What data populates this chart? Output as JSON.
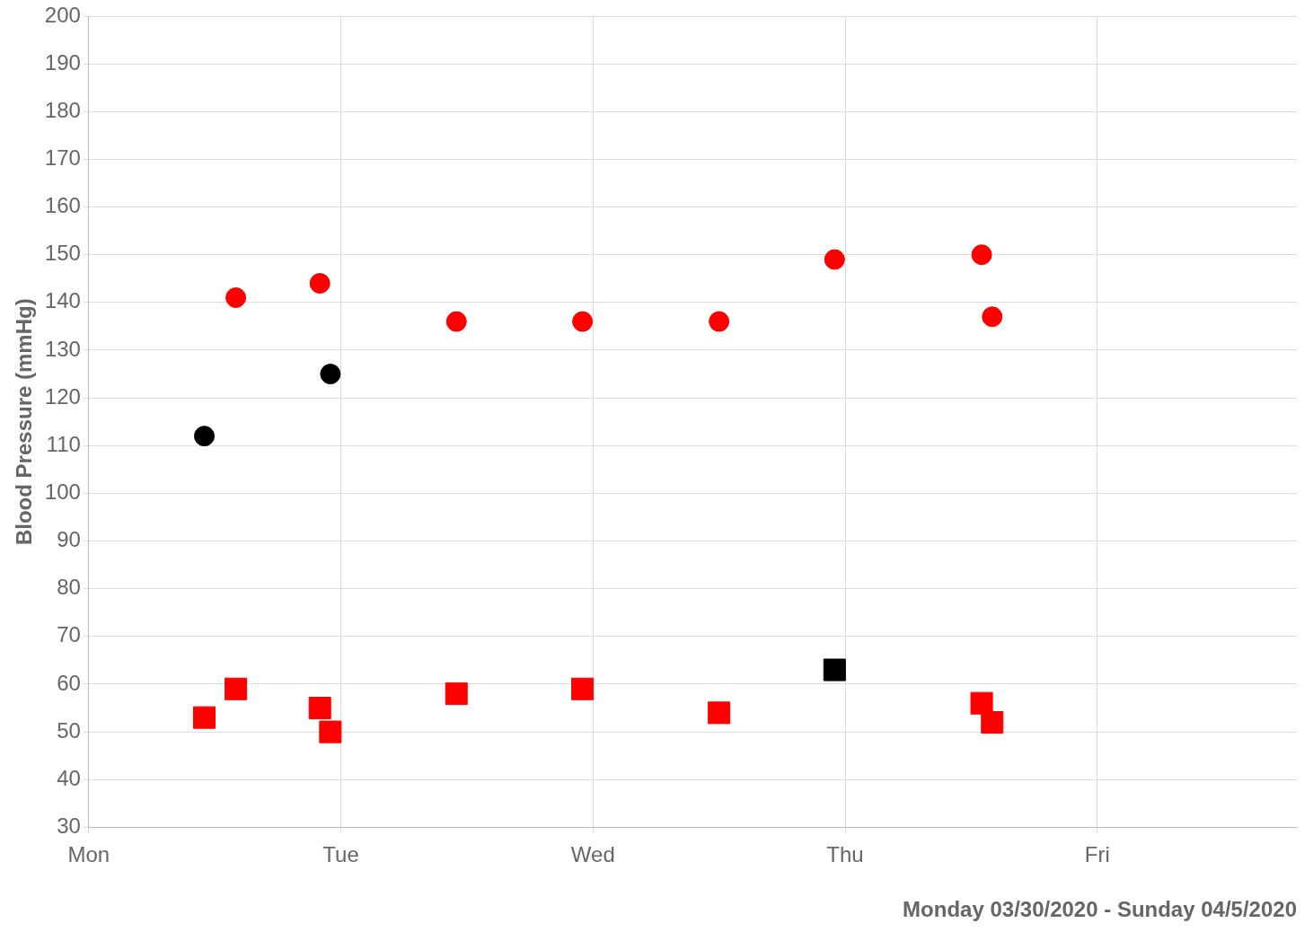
{
  "chart_data": {
    "type": "scatter",
    "xlabel": "Monday 03/30/2020 - Sunday 04/5/2020",
    "ylabel": "Blood Pressure (mmHg)",
    "categories": [
      "Mon",
      null,
      null,
      null,
      null,
      null,
      null,
      null,
      null,
      null,
      null,
      null,
      null,
      null,
      null,
      null,
      null,
      null,
      null,
      null,
      null,
      null,
      null,
      null,
      "Tue",
      null,
      null,
      null,
      null,
      null,
      null,
      null,
      null,
      null,
      null,
      null,
      null,
      null,
      null,
      null,
      null,
      null,
      null,
      null,
      null,
      null,
      null,
      null,
      "Wed",
      null,
      null,
      null,
      null,
      null,
      null,
      null,
      null,
      null,
      null,
      null,
      null,
      null,
      null,
      null,
      null,
      null,
      null,
      null,
      null,
      null,
      null,
      null,
      "Thu",
      null,
      null,
      null,
      null,
      null,
      null,
      null,
      null,
      null,
      null,
      null,
      null,
      null,
      null,
      null,
      null,
      null,
      null,
      null,
      null,
      null,
      null,
      null,
      "Fri",
      null,
      null,
      null,
      null,
      null,
      null,
      null,
      null,
      null,
      null,
      null,
      null,
      null,
      null,
      null,
      null,
      null,
      null,
      null
    ],
    "series": [
      {
        "marker": "circle",
        "color": "#ff0000",
        "values": [
          null,
          null,
          null,
          null,
          null,
          null,
          null,
          null,
          null,
          null,
          null,
          null,
          null,
          null,
          141,
          null,
          null,
          null,
          null,
          null,
          null,
          null,
          144,
          null,
          null,
          null,
          null,
          null,
          null,
          null,
          null,
          null,
          null,
          null,
          null,
          136,
          null,
          null,
          null,
          null,
          null,
          null,
          null,
          null,
          null,
          null,
          null,
          136,
          null,
          null,
          null,
          null,
          null,
          null,
          null,
          null,
          null,
          null,
          null,
          null,
          136,
          null,
          null,
          null,
          null,
          null,
          null,
          null,
          null,
          null,
          null,
          149,
          null,
          null,
          null,
          null,
          null,
          null,
          null,
          null,
          null,
          null,
          null,
          null,
          null,
          150,
          137,
          null,
          null,
          null,
          null,
          null,
          null,
          null,
          null,
          null,
          null,
          null,
          null,
          null,
          null,
          null,
          null,
          null,
          null,
          null,
          null,
          null,
          null,
          null,
          null,
          null,
          null,
          null,
          null,
          null
        ]
      },
      {
        "marker": "circle",
        "color": "#000000",
        "values": [
          null,
          null,
          null,
          null,
          null,
          null,
          null,
          null,
          null,
          null,
          null,
          112,
          null,
          null,
          null,
          null,
          null,
          null,
          null,
          null,
          null,
          null,
          null,
          125,
          null,
          null,
          null,
          null,
          null,
          null,
          null,
          null,
          null,
          null,
          null,
          null,
          null,
          null,
          null,
          null,
          null,
          null,
          null,
          null,
          null,
          null,
          null,
          null,
          null,
          null,
          null,
          null,
          null,
          null,
          null,
          null,
          null,
          null,
          null,
          null,
          null,
          null,
          null,
          null,
          null,
          null,
          null,
          null,
          null,
          null,
          null,
          null,
          null,
          null,
          null,
          null,
          null,
          null,
          null,
          null,
          null,
          null,
          null,
          null,
          null,
          null,
          null,
          null,
          null,
          null,
          null,
          null,
          null,
          null,
          null,
          null,
          null,
          null,
          null,
          null,
          null,
          null,
          null,
          null,
          null,
          null,
          null,
          null,
          null,
          null,
          null,
          null,
          null,
          null,
          null,
          null
        ]
      },
      {
        "marker": "square",
        "color": "#ff0000",
        "values": [
          null,
          null,
          null,
          null,
          null,
          null,
          null,
          null,
          null,
          null,
          null,
          53,
          null,
          null,
          59,
          null,
          null,
          null,
          null,
          null,
          null,
          null,
          55,
          50,
          null,
          null,
          null,
          null,
          null,
          null,
          null,
          null,
          null,
          null,
          null,
          58,
          null,
          null,
          null,
          null,
          null,
          null,
          null,
          null,
          null,
          null,
          null,
          59,
          null,
          null,
          null,
          null,
          null,
          null,
          null,
          null,
          null,
          null,
          null,
          null,
          54,
          null,
          null,
          null,
          null,
          null,
          null,
          null,
          null,
          null,
          null,
          null,
          null,
          null,
          null,
          null,
          null,
          null,
          null,
          null,
          null,
          null,
          null,
          null,
          null,
          56,
          52,
          null,
          null,
          null,
          null,
          null,
          null,
          null,
          null,
          null,
          null,
          null,
          null,
          null,
          null,
          null,
          null,
          null,
          null,
          null,
          null,
          null,
          null,
          null,
          null,
          null,
          null,
          null,
          null,
          null
        ]
      },
      {
        "marker": "square",
        "color": "#000000",
        "values": [
          null,
          null,
          null,
          null,
          null,
          null,
          null,
          null,
          null,
          null,
          null,
          null,
          null,
          null,
          null,
          null,
          null,
          null,
          null,
          null,
          null,
          null,
          null,
          null,
          null,
          null,
          null,
          null,
          null,
          null,
          null,
          null,
          null,
          null,
          null,
          null,
          null,
          null,
          null,
          null,
          null,
          null,
          null,
          null,
          null,
          null,
          null,
          null,
          null,
          null,
          null,
          null,
          null,
          null,
          null,
          null,
          null,
          null,
          null,
          null,
          null,
          null,
          null,
          null,
          null,
          null,
          null,
          null,
          null,
          null,
          null,
          63,
          null,
          null,
          null,
          null,
          null,
          null,
          null,
          null,
          null,
          null,
          null,
          null,
          null,
          null,
          null,
          null,
          null,
          null,
          null,
          null,
          null,
          null,
          null,
          null,
          null,
          null,
          null,
          null,
          null,
          null,
          null,
          null,
          null,
          null,
          null,
          null,
          null,
          null,
          null,
          null,
          null,
          null,
          null,
          null
        ]
      }
    ],
    "ylim": [
      30,
      200
    ],
    "yticks": [
      30,
      40,
      50,
      60,
      70,
      80,
      90,
      100,
      110,
      120,
      130,
      140,
      150,
      160,
      170,
      180,
      190,
      200
    ],
    "grid": true
  }
}
